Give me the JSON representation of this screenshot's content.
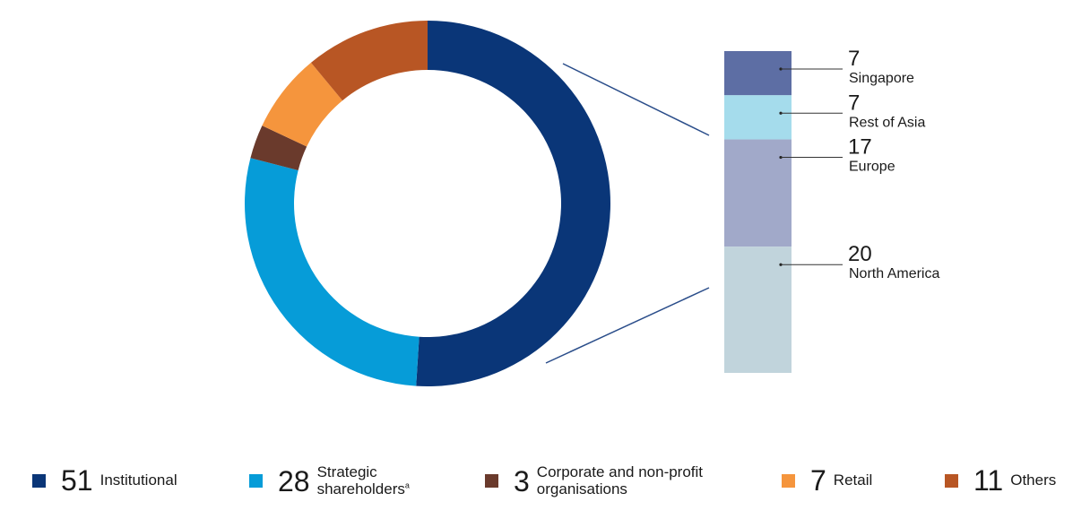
{
  "chart_data": {
    "type": "pie",
    "donut": {
      "series": [
        {
          "name": "Institutional",
          "value": 51,
          "color": "#0a3678"
        },
        {
          "name": "Strategic shareholders",
          "value": 28,
          "color": "#069cd8"
        },
        {
          "name": "Corporate and non-profit organisations",
          "value": 3,
          "color": "#6a3a2c"
        },
        {
          "name": "Retail",
          "value": 7,
          "color": "#f5953d"
        },
        {
          "name": "Others",
          "value": 11,
          "color": "#b85624"
        }
      ]
    },
    "breakdown": {
      "type": "bar",
      "parent": "Institutional",
      "series": [
        {
          "name": "Singapore",
          "value": 7,
          "color": "#5d6ea4"
        },
        {
          "name": "Rest of Asia",
          "value": 7,
          "color": "#a5dcec"
        },
        {
          "name": "Europe",
          "value": 17,
          "color": "#a1a9c9"
        },
        {
          "name": "North America",
          "value": 20,
          "color": "#c1d4dc"
        }
      ]
    }
  },
  "legend": {
    "items": [
      {
        "value": "51",
        "label": "Institutional",
        "sup": ""
      },
      {
        "value": "28",
        "label": "Strategic shareholders",
        "sup": "a"
      },
      {
        "value": "3",
        "label": "Corporate and non-profit organisations",
        "sup": ""
      },
      {
        "value": "7",
        "label": "Retail",
        "sup": ""
      },
      {
        "value": "11",
        "label": "Others",
        "sup": ""
      }
    ]
  }
}
